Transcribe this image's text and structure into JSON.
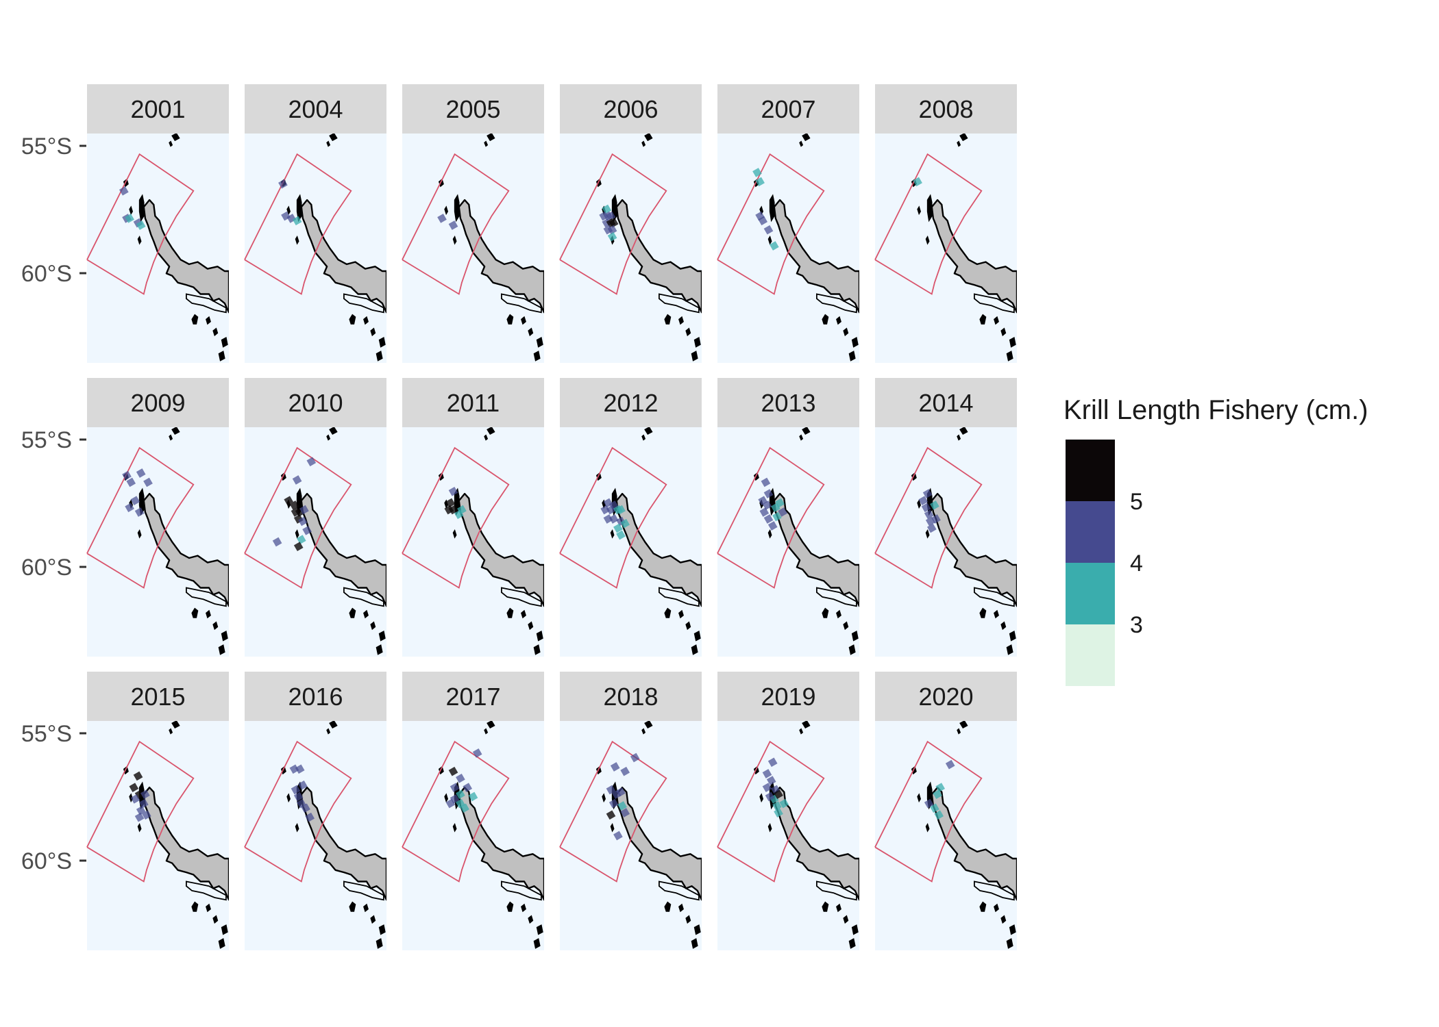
{
  "figure": {
    "latitude_axis": {
      "ticks": [
        "55°S",
        "60°S"
      ]
    },
    "legend": {
      "title": "Krill Length Fishery (cm.)",
      "breaks": [
        "5",
        "4",
        "3"
      ],
      "bins": [
        {
          "range": "> 5",
          "color": "#0c0708"
        },
        {
          "range": "4-5",
          "color": "#454a8f"
        },
        {
          "range": "3-4",
          "color": "#3aadad"
        },
        {
          "range": "< 3",
          "color": "#def3e4"
        }
      ]
    },
    "colors": {
      "ocean": "#eff7fe",
      "strip": "#d9d9d9",
      "land": "#c0c0c0",
      "boundary": "#d9546c"
    },
    "panels": [
      {
        "year": "2001",
        "cells": [
          [
            0.26,
            0.25,
            "m"
          ],
          [
            0.28,
            0.37,
            "m"
          ],
          [
            0.3,
            0.37,
            "t"
          ],
          [
            0.36,
            0.39,
            "m"
          ],
          [
            0.38,
            0.4,
            "t"
          ]
        ]
      },
      {
        "year": "2004",
        "cells": [
          [
            0.27,
            0.22,
            "m"
          ],
          [
            0.29,
            0.36,
            "m"
          ],
          [
            0.33,
            0.37,
            "m"
          ],
          [
            0.37,
            0.38,
            "t"
          ]
        ]
      },
      {
        "year": "2005",
        "cells": [
          [
            0.28,
            0.37,
            "m"
          ],
          [
            0.36,
            0.4,
            "m"
          ]
        ]
      },
      {
        "year": "2006",
        "cells": [
          [
            0.33,
            0.33,
            "t"
          ],
          [
            0.31,
            0.36,
            "m"
          ],
          [
            0.34,
            0.36,
            "m"
          ],
          [
            0.36,
            0.36,
            "m"
          ],
          [
            0.33,
            0.39,
            "m"
          ],
          [
            0.36,
            0.39,
            "d"
          ],
          [
            0.38,
            0.39,
            "d"
          ],
          [
            0.34,
            0.42,
            "m"
          ],
          [
            0.37,
            0.42,
            "m"
          ],
          [
            0.37,
            0.45,
            "t"
          ]
        ]
      },
      {
        "year": "2007",
        "cells": [
          [
            0.28,
            0.17,
            "t"
          ],
          [
            0.3,
            0.21,
            "t"
          ],
          [
            0.3,
            0.36,
            "m"
          ],
          [
            0.32,
            0.38,
            "m"
          ],
          [
            0.36,
            0.42,
            "m"
          ],
          [
            0.4,
            0.49,
            "t"
          ]
        ]
      },
      {
        "year": "2008",
        "cells": [
          [
            0.3,
            0.21,
            "t"
          ]
        ]
      },
      {
        "year": "2009",
        "cells": [
          [
            0.28,
            0.21,
            "m"
          ],
          [
            0.31,
            0.24,
            "m"
          ],
          [
            0.38,
            0.2,
            "m"
          ],
          [
            0.43,
            0.24,
            "m"
          ],
          [
            0.34,
            0.32,
            "m"
          ],
          [
            0.3,
            0.35,
            "m"
          ],
          [
            0.37,
            0.37,
            "m"
          ]
        ]
      },
      {
        "year": "2010",
        "cells": [
          [
            0.31,
            0.32,
            "d"
          ],
          [
            0.35,
            0.34,
            "d"
          ],
          [
            0.36,
            0.37,
            "d"
          ],
          [
            0.39,
            0.37,
            "d"
          ],
          [
            0.38,
            0.4,
            "d"
          ],
          [
            0.42,
            0.36,
            "m"
          ],
          [
            0.41,
            0.41,
            "m"
          ],
          [
            0.37,
            0.23,
            "m"
          ],
          [
            0.47,
            0.15,
            "m"
          ],
          [
            0.44,
            0.45,
            "m"
          ],
          [
            0.4,
            0.49,
            "t"
          ],
          [
            0.23,
            0.5,
            "m"
          ],
          [
            0.38,
            0.52,
            "d"
          ]
        ]
      },
      {
        "year": "2011",
        "cells": [
          [
            0.34,
            0.33,
            "d"
          ],
          [
            0.33,
            0.36,
            "d"
          ],
          [
            0.36,
            0.36,
            "d"
          ],
          [
            0.42,
            0.36,
            "t"
          ],
          [
            0.4,
            0.38,
            "t"
          ],
          [
            0.36,
            0.28,
            "m"
          ]
        ]
      },
      {
        "year": "2012",
        "cells": [
          [
            0.34,
            0.33,
            "m"
          ],
          [
            0.32,
            0.36,
            "m"
          ],
          [
            0.36,
            0.36,
            "m"
          ],
          [
            0.38,
            0.34,
            "m"
          ],
          [
            0.34,
            0.4,
            "m"
          ],
          [
            0.38,
            0.4,
            "m"
          ],
          [
            0.41,
            0.36,
            "t"
          ],
          [
            0.43,
            0.36,
            "t"
          ],
          [
            0.43,
            0.41,
            "m"
          ],
          [
            0.41,
            0.44,
            "t"
          ],
          [
            0.43,
            0.47,
            "t"
          ],
          [
            0.46,
            0.42,
            "t"
          ]
        ]
      },
      {
        "year": "2013",
        "cells": [
          [
            0.34,
            0.24,
            "m"
          ],
          [
            0.36,
            0.29,
            "m"
          ],
          [
            0.32,
            0.32,
            "m"
          ],
          [
            0.35,
            0.34,
            "m"
          ],
          [
            0.33,
            0.37,
            "m"
          ],
          [
            0.36,
            0.4,
            "m"
          ],
          [
            0.39,
            0.43,
            "m"
          ],
          [
            0.41,
            0.35,
            "t"
          ],
          [
            0.44,
            0.33,
            "t"
          ],
          [
            0.46,
            0.37,
            "m"
          ],
          [
            0.42,
            0.39,
            "t"
          ]
        ]
      },
      {
        "year": "2014",
        "cells": [
          [
            0.37,
            0.29,
            "m"
          ],
          [
            0.34,
            0.32,
            "m"
          ],
          [
            0.36,
            0.35,
            "m"
          ],
          [
            0.38,
            0.38,
            "m"
          ],
          [
            0.39,
            0.41,
            "m"
          ],
          [
            0.43,
            0.4,
            "m"
          ],
          [
            0.42,
            0.34,
            "t"
          ],
          [
            0.4,
            0.44,
            "m"
          ]
        ]
      },
      {
        "year": "2015",
        "cells": [
          [
            0.36,
            0.24,
            "d"
          ],
          [
            0.33,
            0.29,
            "d"
          ],
          [
            0.37,
            0.32,
            "d"
          ],
          [
            0.34,
            0.34,
            "m"
          ],
          [
            0.41,
            0.32,
            "m"
          ],
          [
            0.4,
            0.36,
            "m"
          ],
          [
            0.38,
            0.39,
            "m"
          ],
          [
            0.42,
            0.41,
            "m"
          ],
          [
            0.37,
            0.42,
            "m"
          ]
        ]
      },
      {
        "year": "2016",
        "cells": [
          [
            0.35,
            0.21,
            "m"
          ],
          [
            0.39,
            0.21,
            "m"
          ],
          [
            0.41,
            0.28,
            "m"
          ],
          [
            0.36,
            0.3,
            "m"
          ],
          [
            0.38,
            0.33,
            "m"
          ],
          [
            0.4,
            0.36,
            "m"
          ],
          [
            0.43,
            0.38,
            "m"
          ],
          [
            0.46,
            0.42,
            "m"
          ]
        ]
      },
      {
        "year": "2017",
        "cells": [
          [
            0.36,
            0.22,
            "d"
          ],
          [
            0.41,
            0.25,
            "m"
          ],
          [
            0.37,
            0.29,
            "m"
          ],
          [
            0.37,
            0.34,
            "m"
          ],
          [
            0.41,
            0.32,
            "t"
          ],
          [
            0.41,
            0.36,
            "t"
          ],
          [
            0.44,
            0.38,
            "t"
          ],
          [
            0.46,
            0.29,
            "m"
          ],
          [
            0.53,
            0.14,
            "m"
          ],
          [
            0.34,
            0.36,
            "m"
          ],
          [
            0.5,
            0.33,
            "t"
          ]
        ]
      },
      {
        "year": "2018",
        "cells": [
          [
            0.39,
            0.2,
            "m"
          ],
          [
            0.46,
            0.22,
            "m"
          ],
          [
            0.53,
            0.16,
            "m"
          ],
          [
            0.36,
            0.3,
            "m"
          ],
          [
            0.4,
            0.32,
            "m"
          ],
          [
            0.38,
            0.36,
            "m"
          ],
          [
            0.43,
            0.31,
            "m"
          ],
          [
            0.44,
            0.37,
            "t"
          ],
          [
            0.46,
            0.4,
            "m"
          ],
          [
            0.36,
            0.41,
            "d"
          ],
          [
            0.41,
            0.5,
            "m"
          ]
        ]
      },
      {
        "year": "2019",
        "cells": [
          [
            0.39,
            0.18,
            "m"
          ],
          [
            0.35,
            0.23,
            "m"
          ],
          [
            0.38,
            0.26,
            "m"
          ],
          [
            0.35,
            0.29,
            "m"
          ],
          [
            0.41,
            0.3,
            "m"
          ],
          [
            0.4,
            0.34,
            "t"
          ],
          [
            0.43,
            0.32,
            "d"
          ],
          [
            0.42,
            0.37,
            "t"
          ],
          [
            0.43,
            0.4,
            "t"
          ],
          [
            0.37,
            0.33,
            "m"
          ],
          [
            0.47,
            0.36,
            "t"
          ]
        ]
      },
      {
        "year": "2020",
        "cells": [
          [
            0.53,
            0.19,
            "m"
          ],
          [
            0.46,
            0.29,
            "t"
          ],
          [
            0.44,
            0.32,
            "t"
          ],
          [
            0.38,
            0.36,
            "m"
          ],
          [
            0.42,
            0.38,
            "t"
          ],
          [
            0.45,
            0.41,
            "t"
          ]
        ]
      }
    ]
  }
}
